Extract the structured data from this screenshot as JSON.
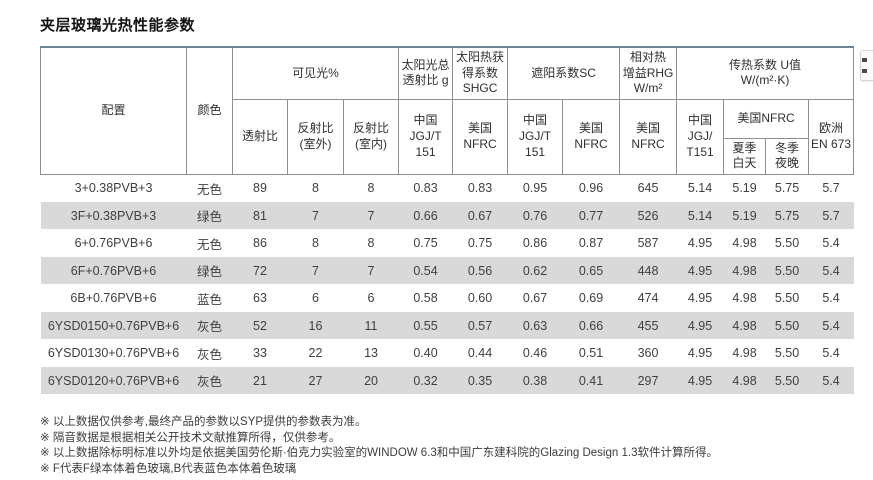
{
  "page": {
    "title": "夹层玻璃光热性能参数"
  },
  "colors": {
    "table_top_border": "#6d8694",
    "header_cell_border": "#8f8f8f",
    "zebra_row_background": "#d9d9d9",
    "text": "#3f3f3f"
  },
  "table": {
    "header": {
      "config": "配置",
      "color": "颜色",
      "visible_group": "可见光%",
      "g_group": "太阳光总透射比 g",
      "shgc_group": "太阳热获得系数 SHGC",
      "sc_group": "遮阳系数SC",
      "rhg_line1": "相对热",
      "rhg_line2": "增益RHG",
      "rhg_line3": "W/m²",
      "u_line1": "传热系数 U值",
      "u_line2": "W/(m²·K)",
      "transmittance": "透射比",
      "reflect_out_line1": "反射比",
      "reflect_out_line2": "(室外)",
      "reflect_in_line1": "反射比",
      "reflect_in_line2": "(室内)",
      "cn_jgjt151": "中国 JGJ/T 151",
      "us_nfrc": "美国 NFRC",
      "u_cn_line1": "中国",
      "u_cn_line2": "JGJ/",
      "u_cn_line3": "T151",
      "u_us_nfrc": "美国NFRC",
      "summer_line1": "夏季",
      "summer_line2": "白天",
      "winter_line1": "冬季",
      "winter_line2": "夜晚",
      "eu_line1": "欧洲",
      "eu_line2": "EN 673"
    },
    "rows": [
      [
        "3+0.38PVB+3",
        "无色",
        "89",
        "8",
        "8",
        "0.83",
        "0.83",
        "0.95",
        "0.96",
        "645",
        "5.14",
        "5.19",
        "5.75",
        "5.7"
      ],
      [
        "3F+0.38PVB+3",
        "绿色",
        "81",
        "7",
        "7",
        "0.66",
        "0.67",
        "0.76",
        "0.77",
        "526",
        "5.14",
        "5.19",
        "5.75",
        "5.7"
      ],
      [
        "6+0.76PVB+6",
        "无色",
        "86",
        "8",
        "8",
        "0.75",
        "0.75",
        "0.86",
        "0.87",
        "587",
        "4.95",
        "4.98",
        "5.50",
        "5.4"
      ],
      [
        "6F+0.76PVB+6",
        "绿色",
        "72",
        "7",
        "7",
        "0.54",
        "0.56",
        "0.62",
        "0.65",
        "448",
        "4.95",
        "4.98",
        "5.50",
        "5.4"
      ],
      [
        "6B+0.76PVB+6",
        "蓝色",
        "63",
        "6",
        "6",
        "0.58",
        "0.60",
        "0.67",
        "0.69",
        "474",
        "4.95",
        "4.98",
        "5.50",
        "5.4"
      ],
      [
        "6YSD0150+0.76PVB+6",
        "灰色",
        "52",
        "16",
        "11",
        "0.55",
        "0.57",
        "0.63",
        "0.66",
        "455",
        "4.95",
        "4.98",
        "5.50",
        "5.4"
      ],
      [
        "6YSD0130+0.76PVB+6",
        "灰色",
        "33",
        "22",
        "13",
        "0.40",
        "0.44",
        "0.46",
        "0.51",
        "360",
        "4.95",
        "4.98",
        "5.50",
        "5.4"
      ],
      [
        "6YSD0120+0.76PVB+6",
        "灰色",
        "21",
        "27",
        "20",
        "0.32",
        "0.35",
        "0.38",
        "0.41",
        "297",
        "4.95",
        "4.98",
        "5.50",
        "5.4"
      ]
    ]
  },
  "footnotes": [
    "※ 以上数据仅供参考,最终产品的参数以SYP提供的参数表为准。",
    "※ 隔音数据是根据相关公开技术文献推算所得，仅供参考。",
    "※ 以上数据除标明标准以外均是依据美国劳伦斯·伯克力实验室的WINDOW 6.3和中国广东建科院的Glazing Design 1.3软件计算所得。",
    "※ F代表F绿本体着色玻璃,B代表蓝色本体着色玻璃"
  ]
}
